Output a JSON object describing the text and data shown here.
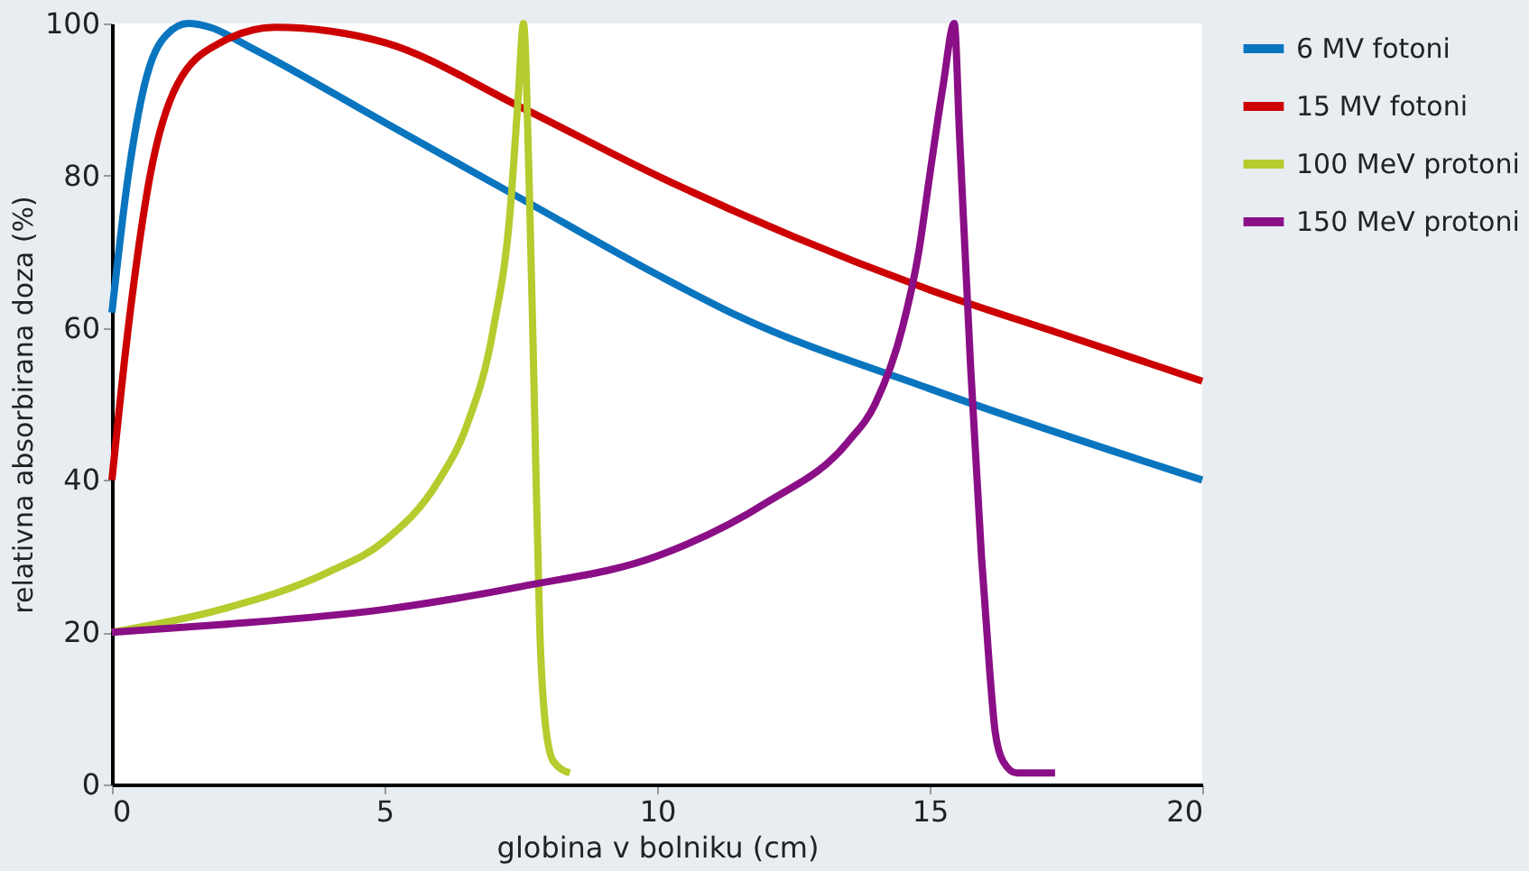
{
  "chart_data": {
    "type": "line",
    "xlabel": "globina v bolniku (cm)",
    "ylabel": "relativna absorbirana doza (%)",
    "xlim": [
      0,
      20
    ],
    "xticks": [
      0,
      5,
      10,
      15,
      20
    ],
    "ylim": [
      0,
      100
    ],
    "yticks": [
      0,
      20,
      40,
      60,
      80,
      100
    ],
    "grid": false,
    "legend": "right",
    "marker": "none",
    "line_style": "solid",
    "series": [
      {
        "name": "6 MV fotoni",
        "color": "#0a75bf",
        "x": [
          0,
          0.3,
          0.6,
          1,
          1.4,
          1.8,
          2.5,
          5,
          7.5,
          10,
          11.5,
          15,
          20
        ],
        "values": [
          62,
          80,
          92,
          98.5,
          100,
          99.5,
          97,
          87,
          77,
          67,
          61.5,
          52,
          40
        ]
      },
      {
        "name": "15 MV fotoni",
        "color": "#cc0000",
        "x": [
          0,
          0.3,
          0.7,
          1.2,
          2,
          3,
          4,
          5,
          7.5,
          10,
          12.5,
          15,
          17.5,
          20
        ],
        "values": [
          40,
          60,
          80,
          92,
          97.5,
          99.5,
          99,
          97.5,
          89,
          80,
          72,
          65,
          59,
          53
        ]
      },
      {
        "name": "100 MeV protoni",
        "color": "#b5cb2e",
        "x": [
          0,
          2,
          4,
          5,
          6,
          6.5,
          7,
          7.3,
          7.45,
          7.55,
          7.65,
          7.75,
          7.85,
          7.95,
          8.1,
          8.4
        ],
        "values": [
          20,
          23,
          28,
          32,
          40,
          47,
          60,
          75,
          90,
          100,
          80,
          50,
          20,
          8,
          3,
          1.5
        ]
      },
      {
        "name": "150 MeV protoni",
        "color": "#8a0f86",
        "x": [
          0,
          2,
          5,
          7.5,
          10,
          12,
          13.5,
          14,
          14.5,
          14.8,
          15,
          15.25,
          15.45,
          15.55,
          15.75,
          15.95,
          16.1,
          16.2,
          16.35,
          16.6,
          17.3
        ],
        "values": [
          20,
          21,
          23,
          26,
          30,
          37,
          45,
          50,
          60,
          70,
          80,
          92,
          100,
          85,
          55,
          30,
          15,
          7,
          3,
          1.5,
          1.5
        ]
      }
    ]
  }
}
